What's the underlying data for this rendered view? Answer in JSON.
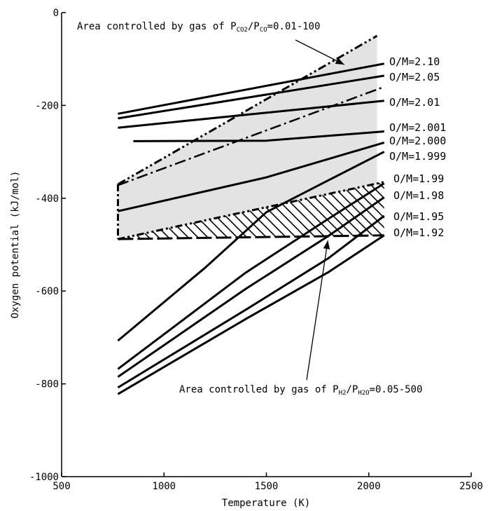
{
  "chart_data": {
    "type": "line",
    "xlabel": "Temperature (K)",
    "ylabel": "Oxygen potential (kJ/mol)",
    "xlim": [
      500,
      2500
    ],
    "ylim": [
      -1000,
      0
    ],
    "xticks": [
      500,
      1000,
      1500,
      2000,
      2500
    ],
    "yticks": [
      0,
      -200,
      -400,
      -600,
      -800,
      -1000
    ],
    "xtick_labels": [
      "500",
      "1000",
      "1500",
      "2000",
      "2500"
    ],
    "ytick_labels": [
      "0",
      "-200",
      "-400",
      "-600",
      "-800",
      "-1000"
    ],
    "grid": false,
    "legend": "none",
    "series": [
      {
        "name": "O/M=2.10",
        "points": [
          [
            775,
            -218
          ],
          [
            2075,
            -110
          ]
        ]
      },
      {
        "name": "O/M=2.05",
        "points": [
          [
            775,
            -228
          ],
          [
            2075,
            -136
          ]
        ]
      },
      {
        "name": "O/M=2.01",
        "points": [
          [
            775,
            -248
          ],
          [
            2075,
            -190
          ]
        ]
      },
      {
        "name": "O/M=2.001",
        "points": [
          [
            850,
            -277
          ],
          [
            1500,
            -276
          ],
          [
            2075,
            -256
          ]
        ]
      },
      {
        "name": "O/M=2.000",
        "points": [
          [
            775,
            -428
          ],
          [
            1500,
            -355
          ],
          [
            2075,
            -280
          ]
        ]
      },
      {
        "name": "O/M=1.999",
        "points": [
          [
            775,
            -707
          ],
          [
            1200,
            -550
          ],
          [
            1500,
            -430
          ],
          [
            1800,
            -362
          ],
          [
            2075,
            -300
          ]
        ]
      },
      {
        "name": "O/M=1.99",
        "points": [
          [
            775,
            -768
          ],
          [
            1400,
            -560
          ],
          [
            1800,
            -445
          ],
          [
            2075,
            -368
          ]
        ]
      },
      {
        "name": "O/M=1.98",
        "points": [
          [
            775,
            -785
          ],
          [
            1400,
            -595
          ],
          [
            1800,
            -482
          ],
          [
            2075,
            -398
          ]
        ]
      },
      {
        "name": "O/M=1.95",
        "points": [
          [
            775,
            -808
          ],
          [
            1400,
            -640
          ],
          [
            1800,
            -530
          ],
          [
            2075,
            -438
          ]
        ]
      },
      {
        "name": "O/M=1.92",
        "points": [
          [
            775,
            -822
          ],
          [
            1400,
            -660
          ],
          [
            1800,
            -560
          ],
          [
            2075,
            -480
          ]
        ]
      }
    ],
    "regions": [
      {
        "label_parts": [
          "Area controlled by gas of P",
          "CO2",
          "/P",
          "CO",
          "=0.01-100"
        ],
        "fill": "#e3e3e3",
        "boundary_top": [
          [
            775,
            -370
          ],
          [
            2040,
            -50
          ]
        ],
        "boundary_bottom": [
          [
            775,
            -488
          ],
          [
            2040,
            -370
          ]
        ],
        "inner_line": [
          [
            775,
            -372
          ],
          [
            2075,
            -160
          ]
        ],
        "label_anchor_data": [
          1880,
          -115
        ]
      },
      {
        "label_parts": [
          "Area controlled by gas of P",
          "H2",
          "/P",
          "H2O",
          "=0.05-500"
        ],
        "hatch": true,
        "boundary_top": [
          [
            775,
            -488
          ],
          [
            2075,
            -365
          ]
        ],
        "boundary_bottom": [
          [
            775,
            -488
          ],
          [
            2075,
            -480
          ]
        ],
        "label_anchor_data": [
          1800,
          -485
        ]
      }
    ]
  }
}
